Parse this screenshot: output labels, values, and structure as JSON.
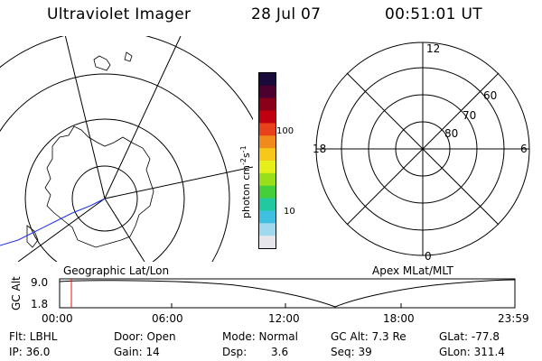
{
  "header": {
    "title": "Ultraviolet Imager",
    "date": "28 Jul 07",
    "time": "00:51:01 UT"
  },
  "geo_panel": {
    "label": "Geographic Lat/Lon"
  },
  "colorbar": {
    "unit_label": "photon cm^-2 s^-1",
    "tick_100": "100",
    "tick_10": "10",
    "colors": [
      "#1a0a3c",
      "#4b0030",
      "#8a0018",
      "#c00010",
      "#e8401a",
      "#f08a1a",
      "#f5c81a",
      "#e5f01a",
      "#9ae01a",
      "#44d03a",
      "#22c8a0",
      "#40c0e0",
      "#a0d8f0",
      "#e6e6ea"
    ]
  },
  "polar_panel": {
    "label": "Apex MLat/MLT",
    "mlt_12": "12",
    "mlt_18": "18",
    "mlt_6": "6",
    "mlt_0": "0",
    "lat_60": "60",
    "lat_70": "70",
    "lat_80": "80"
  },
  "alt_panel": {
    "ylabel": "GC Alt",
    "ymax": "9.0",
    "ymin": "1.8",
    "ticks": [
      "00:00",
      "06:00",
      "12:00",
      "18:00",
      "23:59"
    ]
  },
  "info": {
    "flt": "Flt: LBHL",
    "ip": "IP: 36.0",
    "door": "Door: Open",
    "gain": "Gain: 14",
    "mode": "Mode: Normal",
    "dsp_label": "Dsp:",
    "dsp_value": "3.6",
    "gc_alt": "GC Alt: 7.3 Re",
    "seq": "Seq: 39",
    "glat": "GLat: -77.8",
    "glon": "GLon: 311.4"
  }
}
